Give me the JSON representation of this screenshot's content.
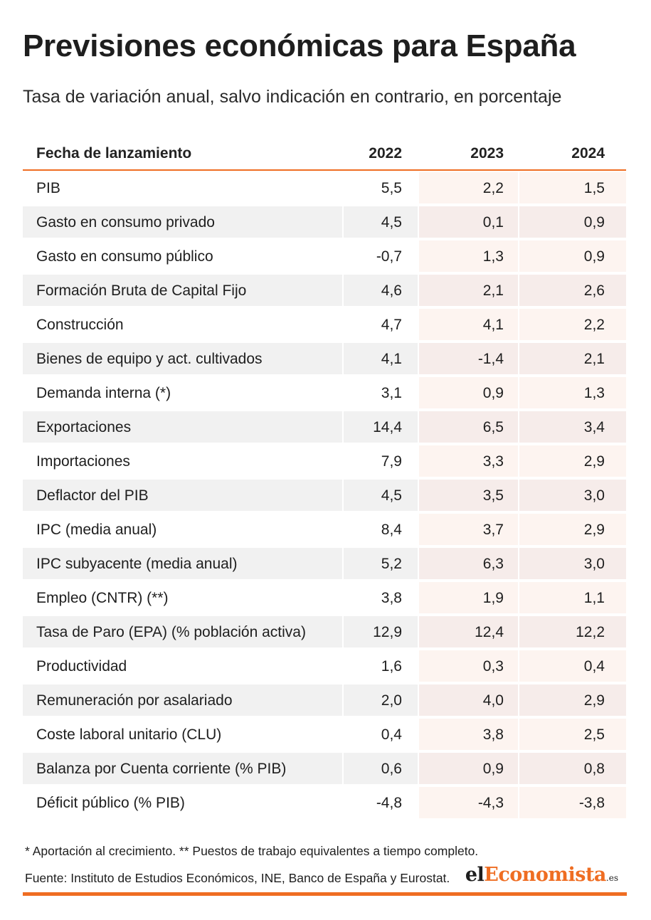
{
  "title": "Previsiones económicas para España",
  "subtitle": "Tasa de variación anual, salvo indicación en contrario, en porcentaje",
  "colors": {
    "accent": "#ef6d22",
    "stripe_gray": "#f1f1f1",
    "forecast_tint": "#fdf4f0",
    "forecast_tint_stripe": "#f6ecea"
  },
  "chart_data": {
    "type": "table",
    "columns": [
      "Fecha de lanzamiento",
      "2022",
      "2023",
      "2024"
    ],
    "rows": [
      {
        "label": "PIB",
        "v2022": "5,5",
        "v2023": "2,2",
        "v2024": "1,5"
      },
      {
        "label": "Gasto en consumo privado",
        "v2022": "4,5",
        "v2023": "0,1",
        "v2024": "0,9"
      },
      {
        "label": "Gasto en consumo público",
        "v2022": "-0,7",
        "v2023": "1,3",
        "v2024": "0,9"
      },
      {
        "label": "Formación Bruta de Capital Fijo",
        "v2022": "4,6",
        "v2023": "2,1",
        "v2024": "2,6"
      },
      {
        "label": "Construcción",
        "v2022": "4,7",
        "v2023": "4,1",
        "v2024": "2,2"
      },
      {
        "label": "Bienes de equipo y act. cultivados",
        "v2022": "4,1",
        "v2023": "-1,4",
        "v2024": "2,1"
      },
      {
        "label": "Demanda interna (*)",
        "v2022": "3,1",
        "v2023": "0,9",
        "v2024": "1,3"
      },
      {
        "label": "Exportaciones",
        "v2022": "14,4",
        "v2023": "6,5",
        "v2024": "3,4"
      },
      {
        "label": "Importaciones",
        "v2022": "7,9",
        "v2023": "3,3",
        "v2024": "2,9"
      },
      {
        "label": "Deflactor del PIB",
        "v2022": "4,5",
        "v2023": "3,5",
        "v2024": "3,0"
      },
      {
        "label": "IPC (media anual)",
        "v2022": "8,4",
        "v2023": "3,7",
        "v2024": "2,9"
      },
      {
        "label": "IPC subyacente (media anual)",
        "v2022": "5,2",
        "v2023": "6,3",
        "v2024": "3,0"
      },
      {
        "label": "Empleo (CNTR) (**)",
        "v2022": "3,8",
        "v2023": "1,9",
        "v2024": "1,1"
      },
      {
        "label": "Tasa de Paro (EPA) (% población activa)",
        "v2022": "12,9",
        "v2023": "12,4",
        "v2024": "12,2"
      },
      {
        "label": "Productividad",
        "v2022": "1,6",
        "v2023": "0,3",
        "v2024": "0,4"
      },
      {
        "label": "Remuneración por asalariado",
        "v2022": "2,0",
        "v2023": "4,0",
        "v2024": "2,9"
      },
      {
        "label": "Coste laboral unitario (CLU)",
        "v2022": "0,4",
        "v2023": "3,8",
        "v2024": "2,5"
      },
      {
        "label": "Balanza por Cuenta corriente (% PIB)",
        "v2022": "0,6",
        "v2023": "0,9",
        "v2024": "0,8"
      },
      {
        "label": "Déficit público (% PIB)",
        "v2022": "-4,8",
        "v2023": "-4,3",
        "v2024": "-3,8"
      }
    ]
  },
  "footnote": "* Aportación al crecimiento. ** Puestos de trabajo equivalentes a tiempo completo.",
  "source": "Fuente: Instituto de Estudios Económicos, INE, Banco de España y Eurostat.",
  "logo": {
    "prefix": "el",
    "accent": "Economista",
    "suffix": ".es"
  }
}
